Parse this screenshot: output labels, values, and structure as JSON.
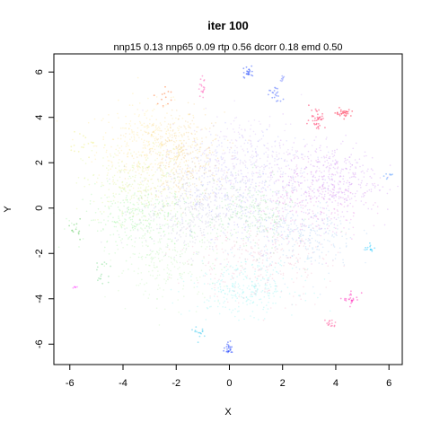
{
  "chart_data": {
    "type": "scatter",
    "title": "iter 100",
    "subtitle": "nnp15 0.13 nnp65 0.09 rtp 0.56 dcorr 0.18 emd 0.50",
    "xlabel": "X",
    "ylabel": "Y",
    "xlim": [
      -6.6,
      6.5
    ],
    "ylim": [
      -6.9,
      6.8
    ],
    "xticks": [
      -6,
      -4,
      -2,
      0,
      2,
      4,
      6
    ],
    "yticks": [
      -6,
      -4,
      -2,
      0,
      2,
      4,
      6
    ],
    "grid": false,
    "point_style": "tiny semi-transparent dots, colored by cluster",
    "clusters": [
      {
        "color": "#ffe070",
        "center": [
          -3.0,
          2.8
        ],
        "spread": [
          1.0,
          0.9
        ],
        "count": 380
      },
      {
        "color": "#f0c060",
        "center": [
          -1.8,
          2.2
        ],
        "spread": [
          0.8,
          1.0
        ],
        "count": 340
      },
      {
        "color": "#d0f070",
        "center": [
          -3.5,
          1.0
        ],
        "spread": [
          1.0,
          0.8
        ],
        "count": 260
      },
      {
        "color": "#80f080",
        "center": [
          -3.3,
          -0.5
        ],
        "spread": [
          1.1,
          0.7
        ],
        "count": 320
      },
      {
        "color": "#b0b0d0",
        "center": [
          -1.5,
          0.0
        ],
        "spread": [
          1.0,
          1.0
        ],
        "count": 380
      },
      {
        "color": "#c8a0f0",
        "center": [
          0.8,
          2.0
        ],
        "spread": [
          1.2,
          1.1
        ],
        "count": 360
      },
      {
        "color": "#c070f0",
        "center": [
          3.8,
          1.3
        ],
        "spread": [
          0.9,
          0.8
        ],
        "count": 360
      },
      {
        "color": "#e070e0",
        "center": [
          3.0,
          0.3
        ],
        "spread": [
          1.0,
          0.9
        ],
        "count": 260
      },
      {
        "color": "#90c0f0",
        "center": [
          2.8,
          -1.3
        ],
        "spread": [
          1.0,
          0.8
        ],
        "count": 280
      },
      {
        "color": "#70f0f0",
        "center": [
          0.6,
          -3.5
        ],
        "spread": [
          1.0,
          0.6
        ],
        "count": 300
      },
      {
        "color": "#80e090",
        "center": [
          0.8,
          -0.3
        ],
        "spread": [
          0.8,
          0.8
        ],
        "count": 240
      },
      {
        "color": "#a0a0ff",
        "center": [
          0.5,
          0.8
        ],
        "spread": [
          1.3,
          1.2
        ],
        "count": 380
      },
      {
        "color": "#f0a0c0",
        "center": [
          1.0,
          -2.3
        ],
        "spread": [
          1.4,
          0.9
        ],
        "count": 280
      },
      {
        "color": "#b0f0a0",
        "center": [
          -2.3,
          -2.5
        ],
        "spread": [
          1.0,
          0.8
        ],
        "count": 220
      },
      {
        "color": "#ff4070",
        "center": [
          3.3,
          4.0
        ],
        "spread": [
          0.15,
          0.25
        ],
        "count": 40
      },
      {
        "color": "#ff3050",
        "center": [
          4.3,
          4.2
        ],
        "spread": [
          0.15,
          0.08
        ],
        "count": 30
      },
      {
        "color": "#4060ff",
        "center": [
          0.7,
          6.0
        ],
        "spread": [
          0.1,
          0.15
        ],
        "count": 25
      },
      {
        "color": "#3050ff",
        "center": [
          0.0,
          -6.2
        ],
        "spread": [
          0.1,
          0.12
        ],
        "count": 25
      },
      {
        "color": "#ff40c0",
        "center": [
          4.6,
          -4.0
        ],
        "spread": [
          0.15,
          0.15
        ],
        "count": 25
      },
      {
        "color": "#ff60a0",
        "center": [
          3.8,
          -5.1
        ],
        "spread": [
          0.1,
          0.1
        ],
        "count": 15
      },
      {
        "color": "#5070ff",
        "center": [
          1.7,
          5.0
        ],
        "spread": [
          0.15,
          0.2
        ],
        "count": 20
      },
      {
        "color": "#ff60ff",
        "center": [
          -5.8,
          -3.5
        ],
        "spread": [
          0.05,
          0.05
        ],
        "count": 6
      },
      {
        "color": "#40d0ff",
        "center": [
          5.3,
          -1.8
        ],
        "spread": [
          0.12,
          0.12
        ],
        "count": 14
      },
      {
        "color": "#60a0ff",
        "center": [
          6.0,
          1.4
        ],
        "spread": [
          0.08,
          0.08
        ],
        "count": 8
      },
      {
        "color": "#ff70c0",
        "center": [
          -1.0,
          5.3
        ],
        "spread": [
          0.08,
          0.2
        ],
        "count": 18
      },
      {
        "color": "#50d0f0",
        "center": [
          -1.1,
          -5.5
        ],
        "spread": [
          0.1,
          0.15
        ],
        "count": 15
      },
      {
        "color": "#70d070",
        "center": [
          -5.8,
          -0.9
        ],
        "spread": [
          0.1,
          0.2
        ],
        "count": 12
      },
      {
        "color": "#90e0a0",
        "center": [
          -4.8,
          -2.8
        ],
        "spread": [
          0.2,
          0.3
        ],
        "count": 16
      },
      {
        "color": "#f0f090",
        "center": [
          -5.5,
          2.8
        ],
        "spread": [
          0.3,
          0.3
        ],
        "count": 18
      },
      {
        "color": "#8090ff",
        "center": [
          2.0,
          5.7
        ],
        "spread": [
          0.05,
          0.1
        ],
        "count": 8
      },
      {
        "color": "#ff8040",
        "center": [
          -2.5,
          5.0
        ],
        "spread": [
          0.2,
          0.2
        ],
        "count": 12
      }
    ]
  }
}
